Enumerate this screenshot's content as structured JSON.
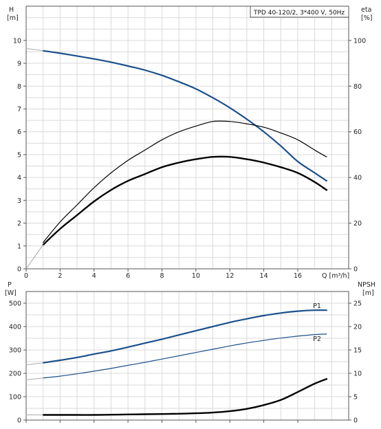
{
  "chart_data": [
    {
      "type": "line",
      "title": "TPD 40-120/2, 3*400 V, 50Hz",
      "xlabel": "Q [m³/h]",
      "xlim": [
        0,
        19
      ],
      "xticks": [
        0,
        2,
        4,
        6,
        8,
        10,
        12,
        14,
        16
      ],
      "y_left": {
        "label_line1": "H",
        "label_line2": "[m]",
        "lim": [
          0,
          11.5
        ],
        "ticks": [
          0,
          1,
          2,
          3,
          4,
          5,
          6,
          7,
          8,
          9,
          10
        ]
      },
      "y_right": {
        "label_line1": "eta",
        "label_line2": "[%]",
        "lim": [
          0,
          115
        ],
        "ticks": [
          0,
          20,
          40,
          60,
          80,
          100
        ]
      },
      "grid": true,
      "series": [
        {
          "axis": "left",
          "color": "#1a4f8b",
          "width": 2.2,
          "x": [
            1,
            2,
            3,
            4,
            5,
            6,
            7,
            8,
            9,
            10,
            11,
            12,
            13,
            14,
            15,
            16,
            17,
            17.7
          ],
          "y": [
            9.55,
            9.44,
            9.32,
            9.19,
            9.05,
            8.88,
            8.7,
            8.47,
            8.19,
            7.88,
            7.49,
            7.05,
            6.55,
            6.0,
            5.38,
            4.7,
            4.2,
            3.85
          ]
        },
        {
          "axis": "left",
          "color": "#aaaaaa",
          "width": 1.0,
          "x": [
            0,
            1
          ],
          "y": [
            9.65,
            9.55
          ]
        },
        {
          "axis": "right",
          "color": "#000000",
          "width": 1.2,
          "x": [
            1,
            2,
            3,
            4,
            5,
            6,
            7,
            8,
            9,
            10,
            11,
            12,
            13,
            14,
            15,
            16,
            17,
            17.7
          ],
          "y": [
            11.5,
            20.5,
            28,
            35.5,
            42,
            47.5,
            52,
            56.5,
            60,
            62.5,
            64.5,
            64.5,
            63.5,
            62,
            59.5,
            56.5,
            52,
            49
          ]
        },
        {
          "axis": "right",
          "color": "#000000",
          "width": 2.4,
          "x": [
            1,
            2,
            3,
            4,
            5,
            6,
            7,
            8,
            9,
            10,
            11,
            12,
            13,
            14,
            15,
            16,
            17,
            17.7
          ],
          "y": [
            10.5,
            17.5,
            23.5,
            29.5,
            34.5,
            38.5,
            41.5,
            44.5,
            46.5,
            48,
            49,
            49,
            48,
            46.5,
            44.5,
            42,
            38,
            34.5
          ]
        },
        {
          "axis": "right",
          "color": "#aaaaaa",
          "width": 1.0,
          "x": [
            0,
            1
          ],
          "y": [
            0,
            10.5
          ]
        }
      ]
    },
    {
      "type": "line",
      "xlim": [
        0,
        19
      ],
      "xticks": [
        0,
        2,
        4,
        6,
        8,
        10,
        12,
        14,
        16
      ],
      "y_left": {
        "label_line1": "P",
        "label_line2": "[W]",
        "lim": [
          0,
          550
        ],
        "ticks": [
          0,
          100,
          200,
          300,
          400,
          500
        ]
      },
      "y_right": {
        "label_line1": "NPSH",
        "label_line2": "[m]",
        "lim": [
          0,
          27.5
        ],
        "ticks": [
          0,
          5,
          10,
          15,
          20,
          25
        ]
      },
      "grid": true,
      "series": [
        {
          "name": "P1",
          "axis": "left",
          "color": "#1a4f8b",
          "width": 2.2,
          "x": [
            1,
            2,
            3,
            4,
            5,
            6,
            7,
            8,
            9,
            10,
            11,
            12,
            13,
            14,
            15,
            16,
            17,
            17.7
          ],
          "y": [
            245,
            256,
            268,
            282,
            296,
            312,
            329,
            346,
            364,
            382,
            400,
            418,
            433,
            447,
            458,
            466,
            470,
            470
          ]
        },
        {
          "name": "P2",
          "axis": "left",
          "color": "#1a4f8b",
          "width": 1.2,
          "x": [
            1,
            2,
            3,
            4,
            5,
            6,
            7,
            8,
            9,
            10,
            11,
            12,
            13,
            14,
            15,
            16,
            17,
            17.7
          ],
          "y": [
            180,
            188,
            198,
            209,
            221,
            234,
            247,
            261,
            275,
            289,
            303,
            317,
            330,
            341,
            351,
            359,
            366,
            368
          ]
        },
        {
          "axis": "left",
          "color": "#aaaaaa",
          "width": 1.0,
          "x": [
            0,
            1
          ],
          "y": [
            236,
            245
          ]
        },
        {
          "axis": "left",
          "color": "#aaaaaa",
          "width": 1.0,
          "x": [
            0,
            1
          ],
          "y": [
            172,
            180
          ]
        },
        {
          "axis": "right",
          "color": "#000000",
          "width": 2.4,
          "x": [
            1,
            2,
            3,
            4,
            5,
            6,
            7,
            8,
            9,
            10,
            11,
            12,
            13,
            14,
            15,
            16,
            17,
            17.7
          ],
          "y": [
            1.1,
            1.1,
            1.1,
            1.1,
            1.15,
            1.2,
            1.25,
            1.3,
            1.35,
            1.45,
            1.6,
            1.9,
            2.4,
            3.2,
            4.3,
            6.0,
            7.8,
            8.8
          ]
        },
        {
          "axis": "right",
          "color": "#aaaaaa",
          "width": 1.0,
          "x": [
            0,
            1
          ],
          "y": [
            1.1,
            1.1
          ]
        }
      ],
      "series_labels": [
        {
          "text": "P1",
          "color": "#1a4f8b",
          "x": 16.9,
          "y": 480
        },
        {
          "text": "P2",
          "color": "#1a4f8b",
          "x": 16.9,
          "y": 338
        }
      ]
    }
  ]
}
